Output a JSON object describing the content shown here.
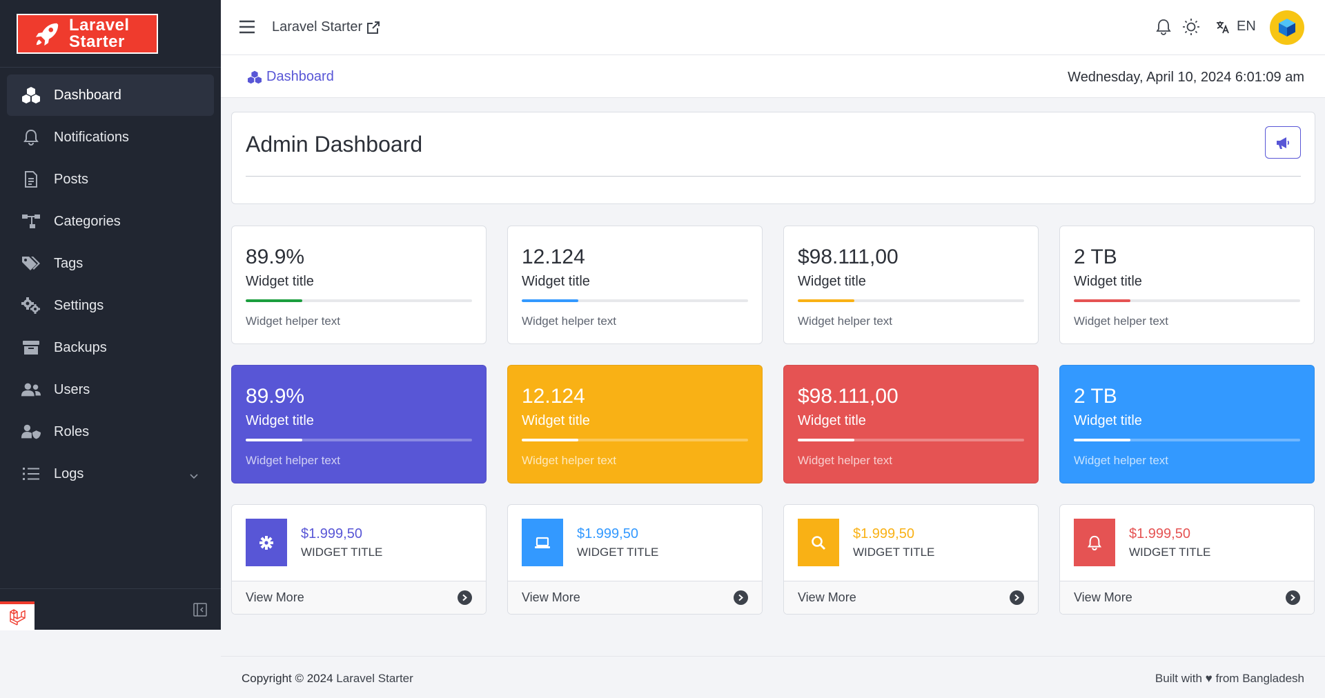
{
  "sidebar": {
    "logo_line1": "Laravel",
    "logo_line2": "Starter",
    "items": [
      {
        "label": "Dashboard",
        "icon": "cubes-icon",
        "active": true
      },
      {
        "label": "Notifications",
        "icon": "bell-icon"
      },
      {
        "label": "Posts",
        "icon": "file-text-icon"
      },
      {
        "label": "Categories",
        "icon": "sitemap-icon"
      },
      {
        "label": "Tags",
        "icon": "tags-icon"
      },
      {
        "label": "Settings",
        "icon": "gears-icon"
      },
      {
        "label": "Backups",
        "icon": "archive-icon"
      },
      {
        "label": "Users",
        "icon": "users-icon"
      },
      {
        "label": "Roles",
        "icon": "user-shield-icon"
      },
      {
        "label": "Logs",
        "icon": "list-icon",
        "has_submenu": true
      }
    ]
  },
  "header": {
    "app_name": "Laravel Starter",
    "language": "EN"
  },
  "breadcrumb": {
    "label": "Dashboard"
  },
  "datetime": "Wednesday, April 10, 2024 6:01:09 am",
  "dashboard": {
    "title": "Admin Dashboard"
  },
  "progress_widgets_light": [
    {
      "value": "89.9%",
      "title": "Widget title",
      "helper": "Widget helper text",
      "progress": 25,
      "color": "#1b9e3e"
    },
    {
      "value": "12.124",
      "title": "Widget title",
      "helper": "Widget helper text",
      "progress": 25,
      "color": "#3399ff"
    },
    {
      "value": "$98.111,00",
      "title": "Widget title",
      "helper": "Widget helper text",
      "progress": 25,
      "color": "#f9b115"
    },
    {
      "value": "2 TB",
      "title": "Widget title",
      "helper": "Widget helper text",
      "progress": 25,
      "color": "#e55353"
    }
  ],
  "progress_widgets_colored": [
    {
      "value": "89.9%",
      "title": "Widget title",
      "helper": "Widget helper text",
      "progress": 25,
      "color": "#5856d6"
    },
    {
      "value": "12.124",
      "title": "Widget title",
      "helper": "Widget helper text",
      "progress": 25,
      "color": "#f9b115"
    },
    {
      "value": "$98.111,00",
      "title": "Widget title",
      "helper": "Widget helper text",
      "progress": 25,
      "color": "#e55353"
    },
    {
      "value": "2 TB",
      "title": "Widget title",
      "helper": "Widget helper text",
      "progress": 25,
      "color": "#3399ff"
    }
  ],
  "icon_widgets": [
    {
      "value": "$1.999,50",
      "title": "WIDGET TITLE",
      "more": "View More",
      "icon": "gear-icon",
      "color": "#5856d6"
    },
    {
      "value": "$1.999,50",
      "title": "WIDGET TITLE",
      "more": "View More",
      "icon": "laptop-icon",
      "color": "#3399ff"
    },
    {
      "value": "$1.999,50",
      "title": "WIDGET TITLE",
      "more": "View More",
      "icon": "search-icon",
      "color": "#f9b115"
    },
    {
      "value": "$1.999,50",
      "title": "WIDGET TITLE",
      "more": "View More",
      "icon": "bell-icon",
      "color": "#e55353"
    }
  ],
  "footer": {
    "copyright_prefix": "Copyright © 2024",
    "brand": "Laravel Starter",
    "built_with": "Built with ♥ from Bangladesh"
  }
}
